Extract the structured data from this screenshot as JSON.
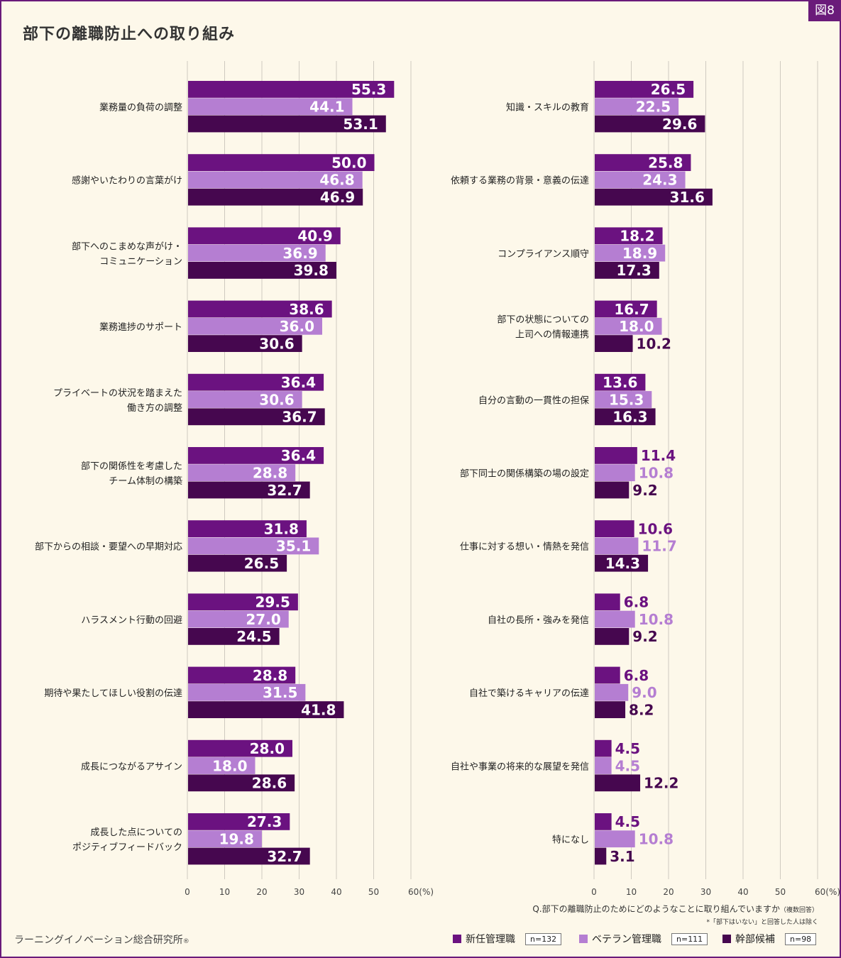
{
  "badge": "図8",
  "title": "部下の離職防止への取り組み",
  "question": "Q.部下の離職防止のためにどのようなことに取り組んでいますか",
  "question_note": "（複数回答）",
  "footnote": "*「部下はいない」と回答した人は除く",
  "source": "ラーニングイノベーション総合研究所",
  "source_mark": "®",
  "colors": {
    "new": "#6b1280",
    "veteran": "#b57ed2",
    "candidate": "#46074f"
  },
  "legend": [
    {
      "name": "新任管理職",
      "n": "n=132",
      "color": "#6b1280"
    },
    {
      "name": "ベテラン管理職",
      "n": "n=111",
      "color": "#b57ed2"
    },
    {
      "name": "幹部候補",
      "n": "n=98",
      "color": "#46074f"
    }
  ],
  "chart_data": [
    {
      "type": "bar",
      "orientation": "horizontal",
      "xlim": [
        0,
        60
      ],
      "ticks": [
        "0",
        "10",
        "20",
        "30",
        "40",
        "50",
        "60(%)"
      ],
      "grid": true,
      "categories": [
        "業務量の負荷の調整",
        "感謝やいたわりの言葉がけ",
        "部下へのこまめな声がけ・\nコミュニケーション",
        "業務進捗のサポート",
        "プライベートの状況を踏まえた\n働き方の調整",
        "部下の関係性を考慮した\nチーム体制の構築",
        "部下からの相談・要望への早期対応",
        "ハラスメント行動の回避",
        "期待や果たしてほしい役割の伝達",
        "成長につながるアサイン",
        "成長した点についての\nポジティブフィードバック"
      ],
      "series": [
        {
          "name": "新任管理職",
          "values": [
            55.3,
            50.0,
            40.9,
            38.6,
            36.4,
            36.4,
            31.8,
            29.5,
            28.8,
            28.0,
            27.3
          ]
        },
        {
          "name": "ベテラン管理職",
          "values": [
            44.1,
            46.8,
            36.9,
            36.0,
            30.6,
            28.8,
            35.1,
            27.0,
            31.5,
            18.0,
            19.8
          ]
        },
        {
          "name": "幹部候補",
          "values": [
            53.1,
            46.9,
            39.8,
            30.6,
            36.7,
            32.7,
            26.5,
            24.5,
            41.8,
            28.6,
            32.7
          ]
        }
      ]
    },
    {
      "type": "bar",
      "orientation": "horizontal",
      "xlim": [
        0,
        60
      ],
      "ticks": [
        "0",
        "10",
        "20",
        "30",
        "40",
        "50",
        "60(%)"
      ],
      "grid": true,
      "categories": [
        "知識・スキルの教育",
        "依頼する業務の背景・意義の伝達",
        "コンプライアンス順守",
        "部下の状態についての\n上司への情報連携",
        "自分の言動の一貫性の担保",
        "部下同士の関係構築の場の設定",
        "仕事に対する想い・情熱を発信",
        "自社の長所・強みを発信",
        "自社で築けるキャリアの伝達",
        "自社や事業の将来的な展望を発信",
        "特になし"
      ],
      "series": [
        {
          "name": "新任管理職",
          "values": [
            26.5,
            25.8,
            18.2,
            16.7,
            13.6,
            11.4,
            10.6,
            6.8,
            6.8,
            4.5,
            4.5
          ]
        },
        {
          "name": "ベテラン管理職",
          "values": [
            22.5,
            24.3,
            18.9,
            18.0,
            15.3,
            10.8,
            11.7,
            10.8,
            9.0,
            4.5,
            10.8
          ]
        },
        {
          "name": "幹部候補",
          "values": [
            29.6,
            31.6,
            17.3,
            10.2,
            16.3,
            9.2,
            14.3,
            9.2,
            8.2,
            12.2,
            3.1
          ]
        }
      ]
    }
  ]
}
